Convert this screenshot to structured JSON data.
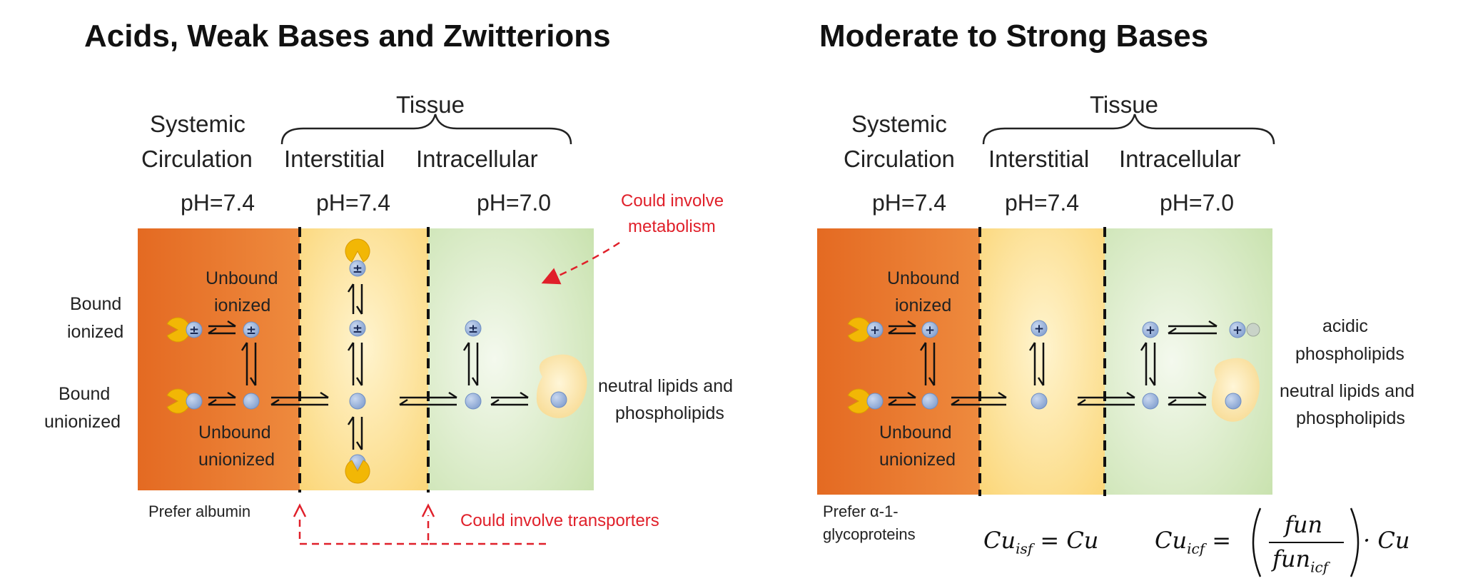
{
  "left_panel": {
    "title": "Acids, Weak Bases and Zwitterions",
    "tissue_label": "Tissue",
    "systemic_line1": "Systemic",
    "systemic_line2": "Circulation",
    "interstitial_label": "Interstitial",
    "intracellular_label": "Intracellular",
    "ph_systemic": "pH=7.4",
    "ph_interstitial": "pH=7.4",
    "ph_intracellular": "pH=7.0",
    "bound_ionized_line1": "Bound",
    "bound_ionized_line2": "ionized",
    "bound_unionized_line1": "Bound",
    "bound_unionized_line2": "unionized",
    "unbound_ionized_line1": "Unbound",
    "unbound_ionized_line2": "ionized",
    "unbound_unionized_line1": "Unbound",
    "unbound_unionized_line2": "unionized",
    "neutral_lipids_line1": "neutral lipids and",
    "neutral_lipids_line2": "phospholipids",
    "metabolism_line1": "Could involve",
    "metabolism_line2": "metabolism",
    "transporters": "Could involve transporters",
    "prefer": "Prefer albumin",
    "charge_symbol": "±"
  },
  "right_panel": {
    "title": "Moderate to Strong Bases",
    "tissue_label": "Tissue",
    "systemic_line1": "Systemic",
    "systemic_line2": "Circulation",
    "interstitial_label": "Interstitial",
    "intracellular_label": "Intracellular",
    "ph_systemic": "pH=7.4",
    "ph_interstitial": "pH=7.4",
    "ph_intracellular": "pH=7.0",
    "unbound_ionized_line1": "Unbound",
    "unbound_ionized_line2": "ionized",
    "unbound_unionized_line1": "Unbound",
    "unbound_unionized_line2": "unionized",
    "acidic_line1": "acidic",
    "acidic_line2": "phospholipids",
    "neutral_lipids_line1": "neutral lipids and",
    "neutral_lipids_line2": "phospholipids",
    "prefer_line1": "Prefer α-1-",
    "prefer_line2": "glycoproteins",
    "charge_symbol": "+",
    "eq1_lhs": "Cu",
    "eq1_lhs_sub": "isf",
    "eq1_rhs": "= Cu",
    "eq2_lhs": "Cu",
    "eq2_lhs_sub": "icf",
    "eq2_equals": "=",
    "eq2_num": "fun",
    "eq2_den": "fun",
    "eq2_den_sub": "icf",
    "eq2_tail": "· Cu"
  },
  "colors": {
    "systemic_orange": "#e8722a",
    "interstitial_yellow": "#fde7a6",
    "intracellular_green": "#cfe6b8",
    "molecule_blue": "#9ab4dc",
    "protein_yellow": "#f2b705",
    "red_annotation": "#e0202a"
  }
}
